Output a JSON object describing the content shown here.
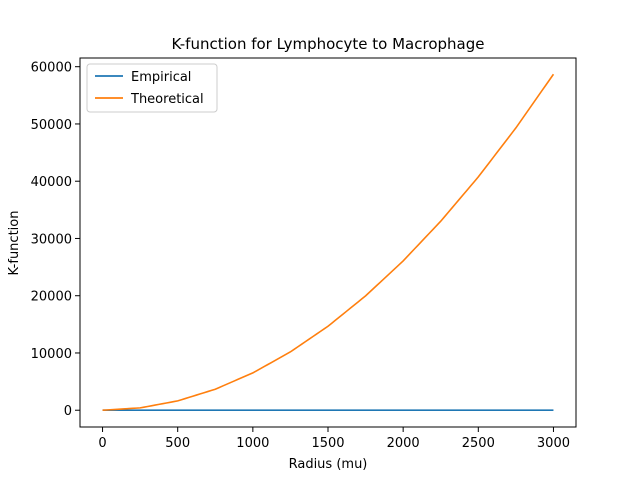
{
  "chart_data": {
    "type": "line",
    "title": "K-function for Lymphocyte to Macrophage",
    "xlabel": "Radius (mu)",
    "ylabel": "K-function",
    "xlim": [
      -150,
      3150
    ],
    "ylim": [
      -2930,
      61520
    ],
    "xticks": [
      0,
      500,
      1000,
      1500,
      2000,
      2500,
      3000
    ],
    "yticks": [
      0,
      10000,
      20000,
      30000,
      40000,
      50000,
      60000
    ],
    "grid": false,
    "legend_position": "upper-left",
    "series": [
      {
        "name": "Empirical",
        "color": "#1f77b4",
        "x": [
          0,
          500,
          1000,
          1500,
          2000,
          2500,
          3000
        ],
        "y": [
          0,
          0,
          0,
          0,
          0,
          0,
          0
        ]
      },
      {
        "name": "Theoretical",
        "color": "#ff7f0e",
        "x": [
          0,
          250,
          500,
          750,
          1000,
          1250,
          1500,
          1750,
          2000,
          2250,
          2500,
          2750,
          3000
        ],
        "y": [
          0,
          408,
          1630,
          3670,
          6520,
          10190,
          14670,
          19970,
          26080,
          33010,
          40750,
          49310,
          58680
        ]
      }
    ]
  }
}
